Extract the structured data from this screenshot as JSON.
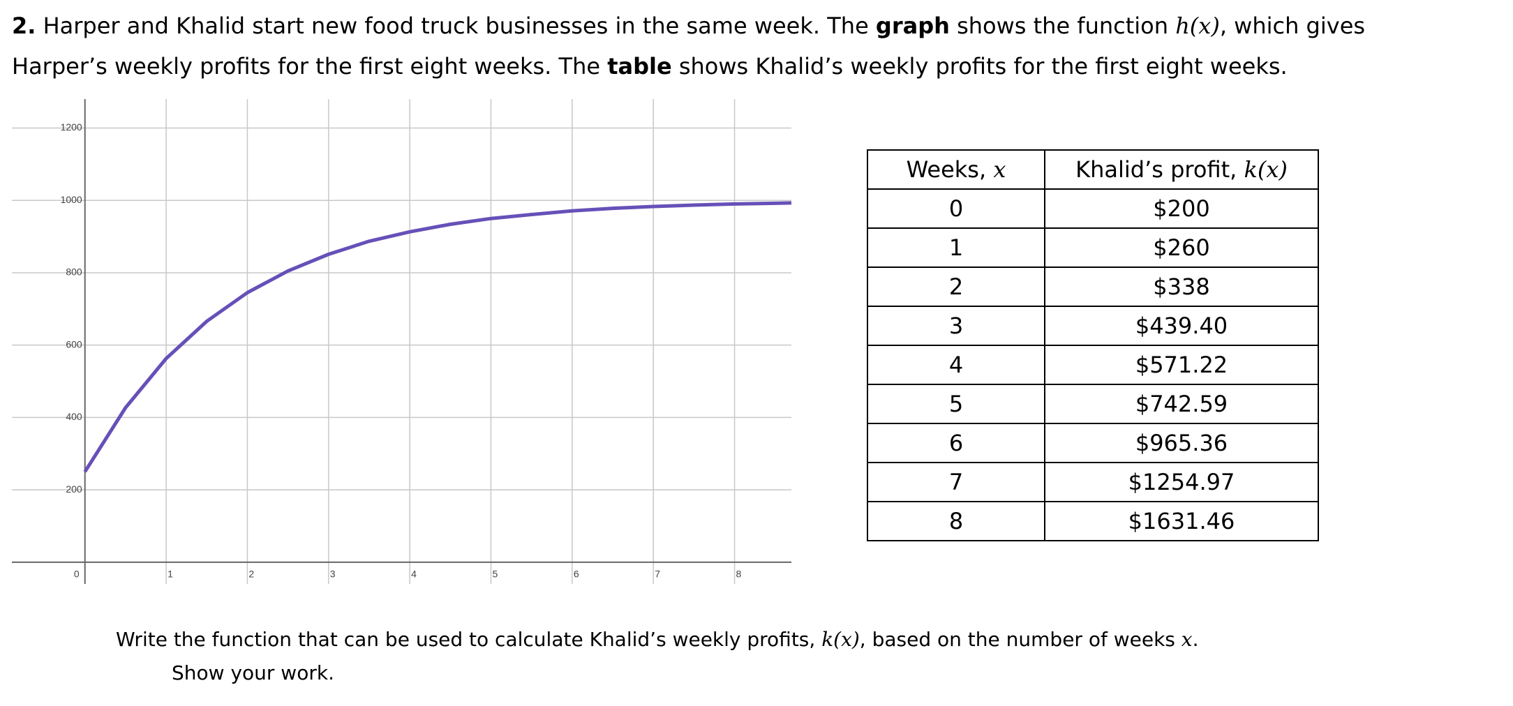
{
  "question": {
    "number": "2.",
    "segments": [
      "Harper and Khalid start new food truck businesses in the same week. The ",
      "graph",
      " shows the function ",
      "h(x)",
      ", which gives",
      "Harper’s weekly profits for the first eight weeks. The ",
      "table",
      " shows Khalid’s weekly profits for the first eight weeks."
    ]
  },
  "chart_data": {
    "type": "line",
    "x": [
      0,
      0.5,
      1,
      1.5,
      2,
      2.5,
      3,
      3.5,
      4,
      4.5,
      5,
      5.5,
      6,
      6.5,
      7,
      7.5,
      8,
      8.5,
      8.7
    ],
    "values": [
      250,
      427,
      563,
      666,
      745,
      805,
      851,
      887,
      913,
      934,
      950,
      961,
      971,
      978,
      983,
      987,
      990,
      992,
      993
    ],
    "color": "#6650b8",
    "xlim": [
      -0.9,
      8.7
    ],
    "ylim": [
      -60,
      1280
    ],
    "xticks": [
      0,
      1,
      2,
      3,
      4,
      5,
      6,
      7,
      8
    ],
    "yticks": [
      200,
      400,
      600,
      800,
      1000,
      1200
    ],
    "grid": true
  },
  "table": {
    "headers": [
      [
        "Weeks, ",
        "x"
      ],
      [
        "Khalid’s profit, ",
        "k(x)"
      ]
    ],
    "rows": [
      [
        "0",
        "$200"
      ],
      [
        "1",
        "$260"
      ],
      [
        "2",
        "$338"
      ],
      [
        "3",
        "$439.40"
      ],
      [
        "4",
        "$571.22"
      ],
      [
        "5",
        "$742.59"
      ],
      [
        "6",
        "$965.36"
      ],
      [
        "7",
        "$1254.97"
      ],
      [
        "8",
        "$1631.46"
      ]
    ]
  },
  "prompt": {
    "segments": [
      "Write the function that can be used to calculate Khalid’s weekly profits, ",
      "k(x)",
      ", based on the number of weeks ",
      "x",
      "."
    ],
    "instruction": "Show your work."
  }
}
